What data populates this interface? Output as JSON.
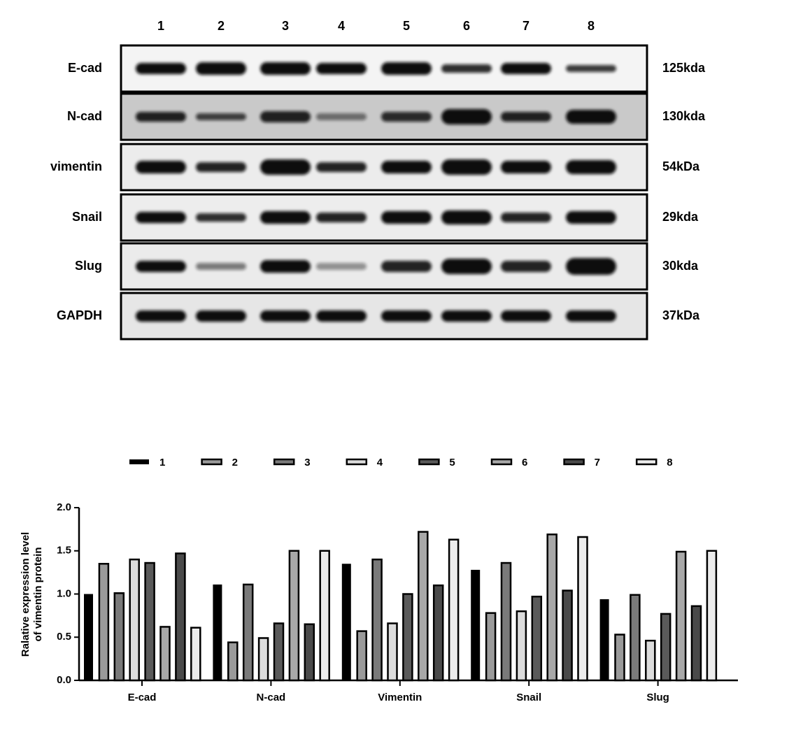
{
  "blot": {
    "lanes": [
      "1",
      "2",
      "3",
      "4",
      "5",
      "6",
      "7",
      "8"
    ],
    "rows": [
      {
        "label": "E-cad",
        "size": "125kda"
      },
      {
        "label": "N-cad",
        "size": "130kda"
      },
      {
        "label": "vimentin",
        "size": "54kDa"
      },
      {
        "label": "Snail",
        "size": "29kda"
      },
      {
        "label": "Slug",
        "size": "30kda"
      },
      {
        "label": "GAPDH",
        "size": "37kDa"
      }
    ]
  },
  "chart_data": {
    "type": "bar",
    "ylabel": [
      "Ralative expression level",
      "of vimentin protein"
    ],
    "categories": [
      "E-cad",
      "N-cad",
      "Vimentin",
      "Snail",
      "Slug"
    ],
    "ylim": [
      0,
      2
    ],
    "yticks": [
      {
        "value": 0,
        "label": "0.0"
      },
      {
        "value": 0.5,
        "label": "0.5"
      },
      {
        "value": 1,
        "label": "1.0"
      },
      {
        "value": 1.5,
        "label": "1.5"
      },
      {
        "value": 2,
        "label": "2.0"
      }
    ],
    "series": [
      {
        "name": "1",
        "color": "#000000",
        "values": [
          1.0,
          1.11,
          1.35,
          1.28,
          0.94
        ]
      },
      {
        "name": "2",
        "color": "#9a9a9a",
        "values": [
          1.35,
          0.44,
          0.57,
          0.78,
          0.53
        ]
      },
      {
        "name": "3",
        "color": "#7a7a7a",
        "values": [
          1.01,
          1.11,
          1.4,
          1.36,
          0.99
        ]
      },
      {
        "name": "4",
        "color": "#dcdcdc",
        "values": [
          1.4,
          0.49,
          0.66,
          0.8,
          0.46
        ]
      },
      {
        "name": "5",
        "color": "#5a5a5a",
        "values": [
          1.36,
          0.66,
          1.0,
          0.97,
          0.77
        ]
      },
      {
        "name": "6",
        "color": "#a8a8a8",
        "values": [
          0.62,
          1.5,
          1.72,
          1.69,
          1.49
        ]
      },
      {
        "name": "7",
        "color": "#4a4a4a",
        "values": [
          1.47,
          0.65,
          1.1,
          1.04,
          0.86
        ]
      },
      {
        "name": "8",
        "color": "#ececec",
        "values": [
          0.61,
          1.5,
          1.63,
          1.66,
          1.5
        ]
      }
    ]
  }
}
